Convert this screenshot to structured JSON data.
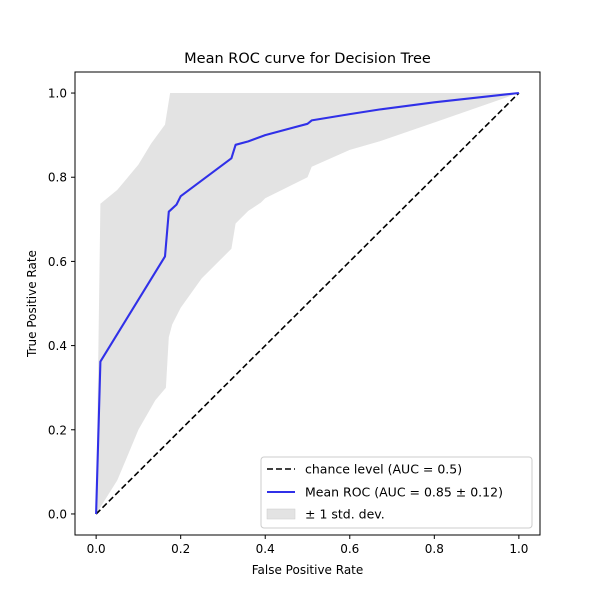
{
  "chart_data": {
    "type": "line",
    "title": "Mean ROC curve for Decision Tree",
    "xlabel": "False Positive Rate",
    "ylabel": "True Positive Rate",
    "xlim": [
      -0.05,
      1.05
    ],
    "ylim": [
      -0.05,
      1.05
    ],
    "xticks": [
      "0.0",
      "0.2",
      "0.4",
      "0.6",
      "0.8",
      "1.0"
    ],
    "yticks": [
      "0.0",
      "0.2",
      "0.4",
      "0.6",
      "0.8",
      "1.0"
    ],
    "grid": false,
    "legend_position": "lower right",
    "series": [
      {
        "name": "chance level (AUC = 0.5)",
        "style": "dashed",
        "color": "#000000",
        "x": [
          0,
          1
        ],
        "y": [
          0,
          1
        ]
      },
      {
        "name": "Mean ROC (AUC = 0.85 ± 0.12)",
        "style": "solid",
        "color": "#3030e8",
        "x": [
          0,
          0.01,
          0.163,
          0.172,
          0.19,
          0.2,
          0.32,
          0.33,
          0.36,
          0.4,
          0.5,
          0.51,
          0.6,
          0.67,
          0.8,
          1.0
        ],
        "y": [
          0,
          0.362,
          0.612,
          0.718,
          0.735,
          0.755,
          0.845,
          0.877,
          0.885,
          0.9,
          0.927,
          0.935,
          0.95,
          0.961,
          0.978,
          1.0
        ]
      }
    ],
    "band": {
      "name": "± 1 std. dev.",
      "color": "#e3e3e3",
      "upper": {
        "x": [
          0,
          0.01,
          0.05,
          0.1,
          0.13,
          0.163,
          0.175,
          1.0
        ],
        "y": [
          0,
          0.737,
          0.77,
          0.83,
          0.88,
          0.925,
          1.0,
          1.0
        ]
      },
      "lower": {
        "x": [
          0,
          0.05,
          0.1,
          0.14,
          0.165,
          0.172,
          0.18,
          0.2,
          0.25,
          0.32,
          0.33,
          0.36,
          0.39,
          0.4,
          0.5,
          0.51,
          0.6,
          0.67,
          0.8,
          1.0
        ],
        "y": [
          0,
          0.08,
          0.2,
          0.27,
          0.3,
          0.42,
          0.45,
          0.49,
          0.56,
          0.63,
          0.69,
          0.72,
          0.74,
          0.75,
          0.8,
          0.825,
          0.865,
          0.885,
          0.93,
          1.0
        ]
      }
    }
  }
}
